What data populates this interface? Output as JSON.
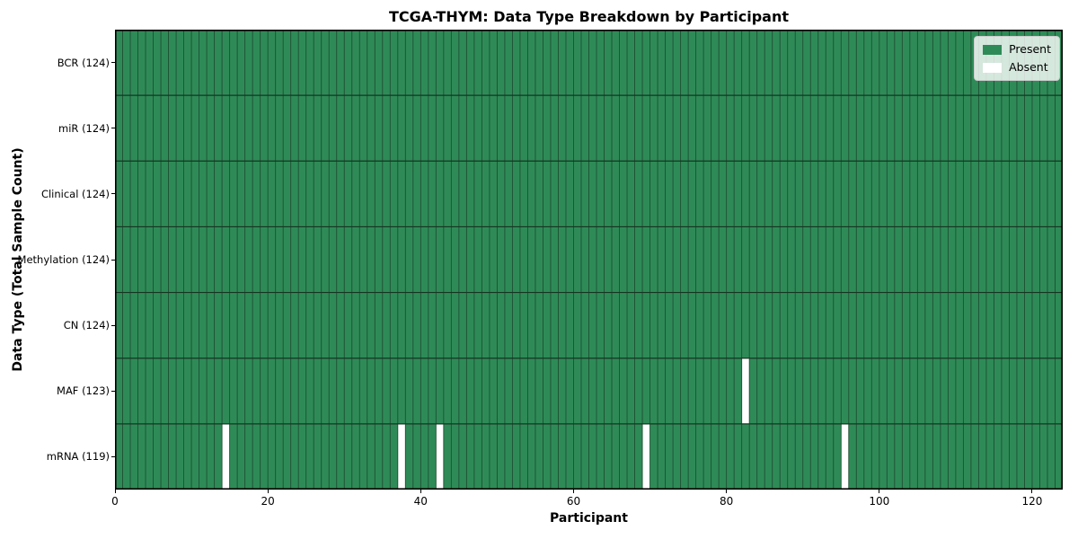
{
  "chart_data": {
    "type": "heatmap",
    "title": "TCGA-THYM: Data Type Breakdown by Participant",
    "xlabel": "Participant",
    "ylabel": "Data Type (Total Sample Count)",
    "xlim": [
      0,
      124
    ],
    "n_participants": 124,
    "x_ticks": [
      0,
      20,
      40,
      60,
      80,
      100,
      120
    ],
    "grid": "cell-edges",
    "rows": [
      {
        "data_type": "BCR",
        "label": "BCR (124)",
        "present_count": 124,
        "absent_participants": []
      },
      {
        "data_type": "miR",
        "label": "miR (124)",
        "present_count": 124,
        "absent_participants": []
      },
      {
        "data_type": "Clinical",
        "label": "Clinical (124)",
        "present_count": 124,
        "absent_participants": []
      },
      {
        "data_type": "Methylation",
        "label": "Methylation (124)",
        "present_count": 124,
        "absent_participants": []
      },
      {
        "data_type": "CN",
        "label": "CN (124)",
        "present_count": 124,
        "absent_participants": []
      },
      {
        "data_type": "MAF",
        "label": "MAF (123)",
        "present_count": 123,
        "absent_participants": [
          82
        ]
      },
      {
        "data_type": "mRNA",
        "label": "mRNA (119)",
        "present_count": 119,
        "absent_participants": [
          14,
          37,
          42,
          69,
          95
        ]
      }
    ],
    "legend": {
      "position": "upper right",
      "entries": [
        {
          "label": "Present",
          "color": "#2e8b57"
        },
        {
          "label": "Absent",
          "color": "#ffffff"
        }
      ]
    },
    "colors": {
      "present": "#2e8b57",
      "absent": "#ffffff",
      "cell_edge": "#1f4e33",
      "row_edge": "#163522",
      "spine": "#000000"
    }
  }
}
